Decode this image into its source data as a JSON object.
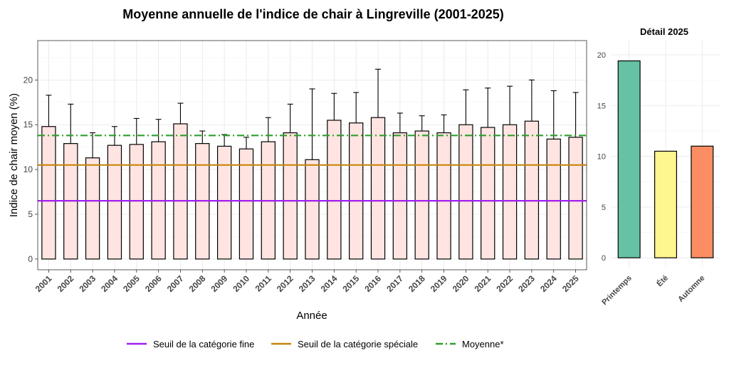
{
  "colors": {
    "bar_fill": "#FFE4E1",
    "bar_stroke": "#000000",
    "fine": "#A020F0",
    "speciale": "#C8860A",
    "moyenne": "#2CA02C",
    "grid": "#E6E6E6",
    "printemps": "#66C2A5",
    "ete": "#FFF68F",
    "automne": "#FC8D62"
  },
  "chart_data": [
    {
      "type": "bar",
      "title": "Moyenne annuelle de l'indice de chair à Lingreville (2001-2025)",
      "xlabel": "Année",
      "ylabel": "Indice de chair moyen (%)",
      "ylim": [
        -1.2,
        24.4
      ],
      "yticks": [
        0,
        5,
        10,
        15,
        20
      ],
      "grid": true,
      "categories": [
        "2001",
        "2002",
        "2003",
        "2004",
        "2005",
        "2006",
        "2007",
        "2008",
        "2009",
        "2010",
        "2011",
        "2012",
        "2013",
        "2014",
        "2015",
        "2016",
        "2017",
        "2018",
        "2019",
        "2020",
        "2021",
        "2022",
        "2023",
        "2024",
        "2025"
      ],
      "values": [
        14.8,
        12.9,
        11.3,
        12.7,
        12.8,
        13.1,
        15.1,
        12.9,
        12.6,
        12.3,
        13.1,
        14.1,
        11.1,
        15.5,
        15.2,
        15.8,
        14.1,
        14.3,
        14.1,
        15.0,
        14.7,
        15.0,
        15.4,
        13.4,
        13.6
      ],
      "error_upper": [
        18.3,
        17.3,
        14.1,
        14.8,
        15.7,
        15.6,
        17.4,
        14.3,
        13.9,
        13.6,
        15.8,
        17.3,
        19.0,
        18.5,
        18.6,
        21.2,
        16.3,
        16.0,
        16.1,
        18.9,
        19.1,
        19.3,
        20.0,
        18.8,
        18.6
      ],
      "reference_lines": [
        {
          "name": "Seuil de la catégorie fine",
          "value": 6.5,
          "style": "solid"
        },
        {
          "name": "Seuil de la catégorie spéciale",
          "value": 10.5,
          "style": "solid"
        },
        {
          "name": "Moyenne*",
          "value": 13.8,
          "style": "dashdot"
        }
      ],
      "legend": "bottom"
    },
    {
      "type": "bar",
      "title": "Détail 2025",
      "ylim": [
        -0.9,
        21.4
      ],
      "yticks": [
        0,
        5,
        10,
        15,
        20
      ],
      "grid": true,
      "categories": [
        "Printemps",
        "Été",
        "Automne"
      ],
      "values": [
        19.4,
        10.5,
        11.0
      ]
    }
  ]
}
